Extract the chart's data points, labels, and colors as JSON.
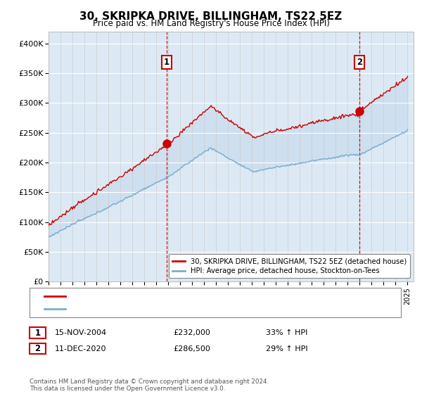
{
  "title": "30, SKRIPKA DRIVE, BILLINGHAM, TS22 5EZ",
  "subtitle": "Price paid vs. HM Land Registry's House Price Index (HPI)",
  "plot_bg_color": "#dce9f5",
  "ylim": [
    0,
    420000
  ],
  "yticks": [
    0,
    50000,
    100000,
    150000,
    200000,
    250000,
    300000,
    350000,
    400000
  ],
  "ytick_labels": [
    "£0",
    "£50K",
    "£100K",
    "£150K",
    "£200K",
    "£250K",
    "£300K",
    "£350K",
    "£400K"
  ],
  "sale1_year": 2004.875,
  "sale1_price": 232000,
  "sale2_year": 2020.958,
  "sale2_price": 286500,
  "legend_entries": [
    "30, SKRIPKA DRIVE, BILLINGHAM, TS22 5EZ (detached house)",
    "HPI: Average price, detached house, Stockton-on-Tees"
  ],
  "table_row1": [
    "15-NOV-2004",
    "£232,000",
    "33% ↑ HPI"
  ],
  "table_row2": [
    "11-DEC-2020",
    "£286,500",
    "29% ↑ HPI"
  ],
  "footer": "Contains HM Land Registry data © Crown copyright and database right 2024.\nThis data is licensed under the Open Government Licence v3.0.",
  "line_color_red": "#cc0000",
  "line_color_blue": "#7aadcf",
  "fill_color": "#c5d9ec",
  "grid_color": "#ffffff",
  "grid_color_x": "#cccccc"
}
